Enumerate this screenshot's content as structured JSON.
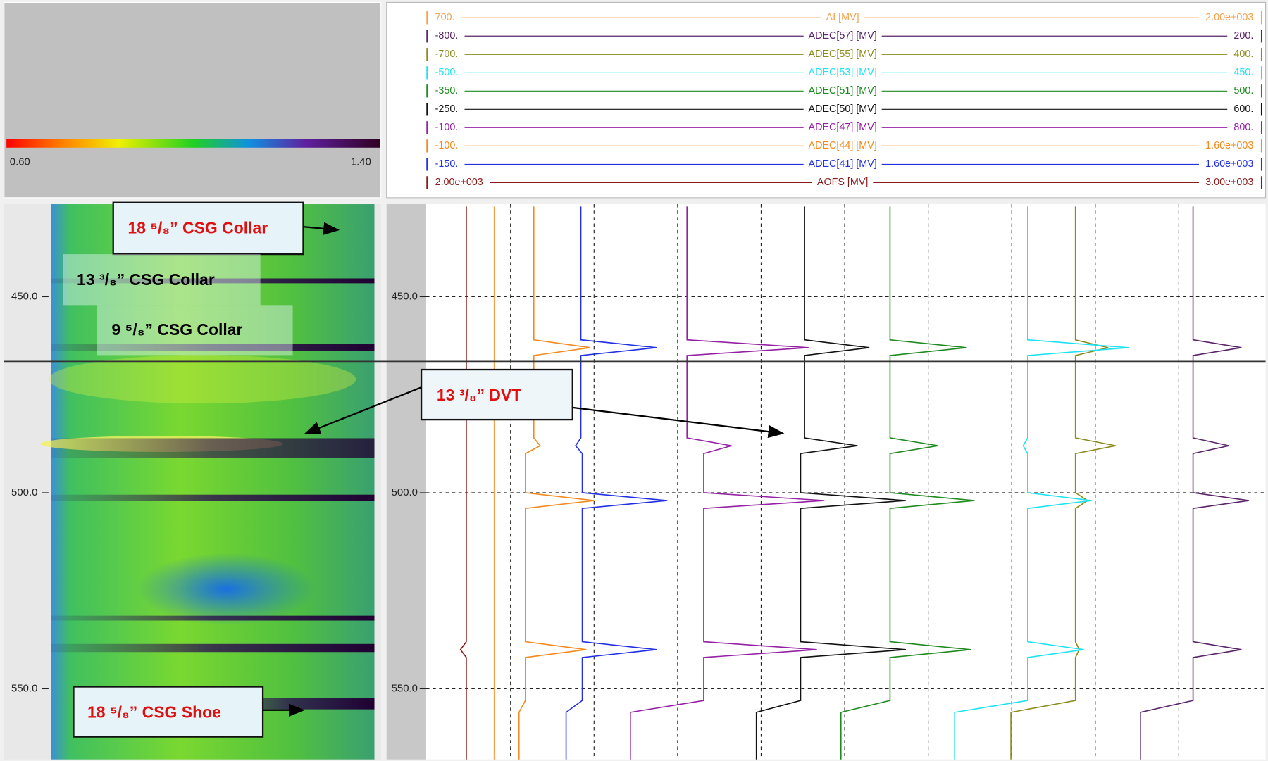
{
  "color_scale": {
    "min_label": "0.60",
    "max_label": "1.40"
  },
  "depth_lim": [
    426.4,
    568
  ],
  "depth_ticks": [
    {
      "value": 450,
      "label": "450.0"
    },
    {
      "value": 500,
      "label": "500.0"
    },
    {
      "value": 550,
      "label": "550.0"
    }
  ],
  "cursor_depth": 466.5,
  "depths": [
    427,
    461,
    463,
    465,
    486,
    488,
    490,
    500,
    502,
    504,
    538,
    540,
    542,
    553,
    556,
    568
  ],
  "curves": [
    {
      "name": "AI [MV]",
      "color": "#f5a04a",
      "left": {
        "value": 700,
        "label": "700."
      },
      "right": {
        "value": 2000,
        "label": "2.00e+003"
      },
      "values": [
        806,
        806,
        806,
        806,
        806,
        806,
        806,
        806,
        806,
        806,
        806,
        806,
        806,
        806,
        806,
        806
      ]
    },
    {
      "name": "ADEC[57] [MV]",
      "color": "#5a2468",
      "left": {
        "value": -800,
        "label": "-800."
      },
      "right": {
        "value": 200,
        "label": "200."
      },
      "values": [
        118,
        118,
        176,
        118,
        118,
        161,
        118,
        118,
        185,
        118,
        118,
        176,
        118,
        118,
        55,
        55
      ]
    },
    {
      "name": "ADEC[55] [MV]",
      "color": "#8a8a1e",
      "left": {
        "value": -700,
        "label": "-700."
      },
      "right": {
        "value": 400,
        "label": "400."
      },
      "values": [
        155,
        155,
        198,
        155,
        155,
        208,
        155,
        155,
        171,
        155,
        155,
        160,
        155,
        155,
        70,
        70
      ]
    },
    {
      "name": "ADEC[53] [MV]",
      "color": "#1ee2f2",
      "left": {
        "value": -500,
        "label": "-500."
      },
      "right": {
        "value": 450,
        "label": "450."
      },
      "values": [
        184,
        184,
        299,
        184,
        184,
        179,
        184,
        184,
        257,
        184,
        184,
        248,
        184,
        184,
        101,
        101
      ]
    },
    {
      "name": "ADEC[51] [MV]",
      "color": "#1f8a1f",
      "left": {
        "value": -350,
        "label": "-350."
      },
      "right": {
        "value": 500,
        "label": "500."
      },
      "values": [
        122,
        122,
        200,
        122,
        122,
        171,
        122,
        122,
        208,
        122,
        122,
        204,
        122,
        122,
        72,
        72
      ]
    },
    {
      "name": "ADEC[50] [MV]",
      "color": "#111111",
      "left": {
        "value": -250,
        "label": "-250."
      },
      "right": {
        "value": 600,
        "label": "600."
      },
      "values": [
        135,
        135,
        201,
        135,
        135,
        189,
        131,
        131,
        238,
        131,
        131,
        238,
        131,
        131,
        86,
        86
      ]
    },
    {
      "name": "ADEC[47] [MV]",
      "color": "#9420a4",
      "left": {
        "value": -100,
        "label": "-100."
      },
      "right": {
        "value": 800,
        "label": "800."
      },
      "values": [
        181,
        181,
        312,
        181,
        181,
        229,
        199,
        199,
        329,
        199,
        199,
        321,
        199,
        199,
        120,
        120
      ]
    },
    {
      "name": "ADEC[44] [MV]",
      "color": "#f28a1e",
      "left": {
        "value": -100,
        "label": "-100."
      },
      "right": {
        "value": 1600,
        "label": "1.60e+003"
      },
      "values": [
        119,
        119,
        234,
        119,
        119,
        132,
        102,
        102,
        242,
        102,
        102,
        226,
        102,
        102,
        89,
        89
      ]
    },
    {
      "name": "ADEC[41] [MV]",
      "color": "#2030e2",
      "left": {
        "value": -150,
        "label": "-150."
      },
      "right": {
        "value": 1600,
        "label": "1.60e+003"
      },
      "values": [
        174,
        174,
        333,
        174,
        174,
        163,
        177,
        177,
        355,
        177,
        177,
        333,
        177,
        177,
        143,
        143
      ]
    },
    {
      "name": "AOFS [MV]",
      "color": "#8a1a1a",
      "left": {
        "value": 2000,
        "label": "2.00e+003"
      },
      "right": {
        "value": 3000,
        "label": "3.00e+003"
      },
      "values": [
        2048,
        2048,
        2048,
        2048,
        2048,
        2048,
        2048,
        2048,
        2048,
        2048,
        2048,
        2041,
        2048,
        2048,
        2048,
        2048
      ]
    }
  ],
  "annotations": [
    {
      "text": "18 ⁵/₈” CSG Collar"
    },
    {
      "text": "13 ³/₈” CSG Collar"
    },
    {
      "text": "9 ⁵/₈” CSG Collar"
    },
    {
      "text": "13 ³/₈” DVT"
    },
    {
      "text": "18 ⁵/₈” CSG Shoe"
    }
  ]
}
